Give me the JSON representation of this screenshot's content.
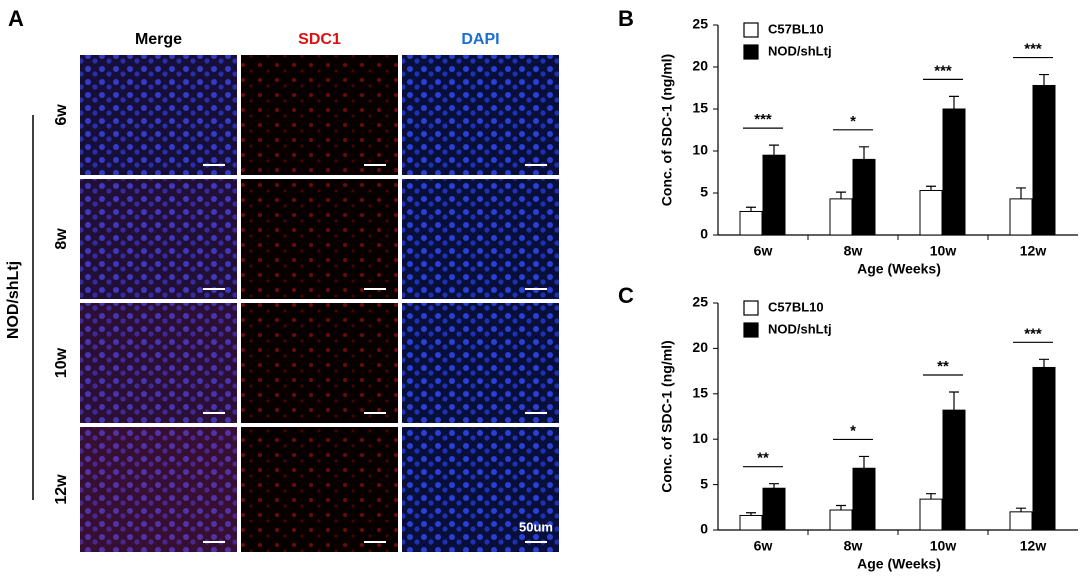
{
  "panel_a": {
    "label": "A",
    "columns": [
      "Merge",
      "SDC1",
      "DAPI"
    ],
    "rows": [
      "6w",
      "8w",
      "10w",
      "12w"
    ],
    "group": "NOD/shLtj",
    "scale": "50um"
  },
  "chart_data": [
    {
      "type": "bar",
      "panel_label": "B",
      "ylabel": "Conc. of SDC-1 (ng/ml)",
      "xlabel": "Age (Weeks)",
      "categories": [
        "6w",
        "8w",
        "10w",
        "12w"
      ],
      "ylim": [
        0,
        25
      ],
      "yticks": [
        0,
        5,
        10,
        15,
        20,
        25
      ],
      "legend": "upper left",
      "series": [
        {
          "name": "C57BL10",
          "color": "#ffffff",
          "values": [
            2.8,
            4.3,
            5.3,
            4.3
          ],
          "errors": [
            0.5,
            0.8,
            0.5,
            1.3
          ]
        },
        {
          "name": "NOD/shLtj",
          "color": "#000000",
          "values": [
            9.5,
            9.0,
            15.0,
            17.8
          ],
          "errors": [
            1.2,
            1.5,
            1.5,
            1.3
          ]
        }
      ],
      "significance": [
        "***",
        "*",
        "***",
        "***"
      ]
    },
    {
      "type": "bar",
      "panel_label": "C",
      "ylabel": "Conc. of SDC-1 (ng/ml)",
      "xlabel": "Age (Weeks)",
      "categories": [
        "6w",
        "8w",
        "10w",
        "12w"
      ],
      "ylim": [
        0,
        25
      ],
      "yticks": [
        0,
        5,
        10,
        15,
        20,
        25
      ],
      "legend": "upper left",
      "series": [
        {
          "name": "C57BL10",
          "color": "#ffffff",
          "values": [
            1.6,
            2.2,
            3.4,
            2.0
          ],
          "errors": [
            0.3,
            0.5,
            0.6,
            0.4
          ]
        },
        {
          "name": "NOD/shLtj",
          "color": "#000000",
          "values": [
            4.6,
            6.8,
            13.2,
            17.9
          ],
          "errors": [
            0.5,
            1.3,
            2.0,
            0.9
          ]
        }
      ],
      "significance": [
        "**",
        "*",
        "**",
        "***"
      ]
    }
  ]
}
